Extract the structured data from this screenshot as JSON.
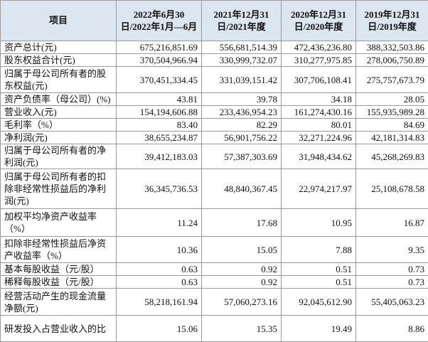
{
  "table": {
    "header": [
      "项目",
      "2022年6月30日/2022年1月—6月",
      "2021年12月31日/2021年度",
      "2020年12月31日/2020年度",
      "2019年12月31日/2019年度"
    ],
    "rows": [
      [
        "资产总计(元)",
        "675,216,851.69",
        "556,681,514.39",
        "472,436,236.80",
        "388,332,503.86"
      ],
      [
        "股东权益合计(元)",
        "370,504,966.94",
        "330,999,732.07",
        "310,277,975.85",
        "278,006,750.89"
      ],
      [
        "归属于母公司所有者的股东权益(元)",
        "370,451,334.45",
        "331,039,151.42",
        "307,706,108.41",
        "275,757,673.79"
      ],
      [
        "资产负债率（母公司）(%)",
        "43.81",
        "39.78",
        "34.18",
        "28.05"
      ],
      [
        "营业收入(元)",
        "154,194,606.88",
        "233,436,954.23",
        "161,274,430.16",
        "155,935,989.28"
      ],
      [
        "毛利率（%）",
        "83.40",
        "82.29",
        "80.01",
        "84.69"
      ],
      [
        "净利润(元)",
        "38,655,234.87",
        "56,901,756.22",
        "32,271,224.96",
        "42,181,314.83"
      ],
      [
        "归属于母公司所有者的净利润(元)",
        "39,412,183.03",
        "57,387,303.69",
        "31,948,434.62",
        "45,268,269.83"
      ],
      [
        "归属于母公司所有者的扣除非经常性损益后的净利润(元)",
        "36,345,736.53",
        "48,840,367.45",
        "22,974,217.97",
        "25,108,678.58"
      ],
      [
        "加权平均净资产收益率（%）",
        "11.24",
        "17.68",
        "10.95",
        "16.87"
      ],
      [
        "扣除非经常性损益后净资产收益率（%）",
        "10.36",
        "15.05",
        "7.88",
        "9.35"
      ],
      [
        "基本每股收益（元/股）",
        "0.63",
        "0.92",
        "0.51",
        "0.73"
      ],
      [
        "稀释每股收益（元/股）",
        "0.63",
        "0.92",
        "0.51",
        "0.73"
      ],
      [
        "经营活动产生的现金流量净额(元)",
        "58,218,161.94",
        "57,060,273.16",
        "92,045,612.90",
        "55,405,063.23"
      ],
      [
        "研发投入占营业收入的比",
        "15.06",
        "15.35",
        "19.49",
        "8.86"
      ]
    ]
  }
}
